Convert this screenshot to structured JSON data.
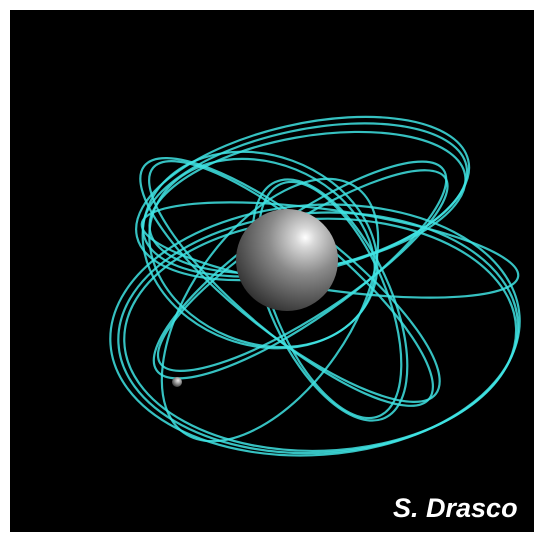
{
  "caption": "S. Drasco"
}
